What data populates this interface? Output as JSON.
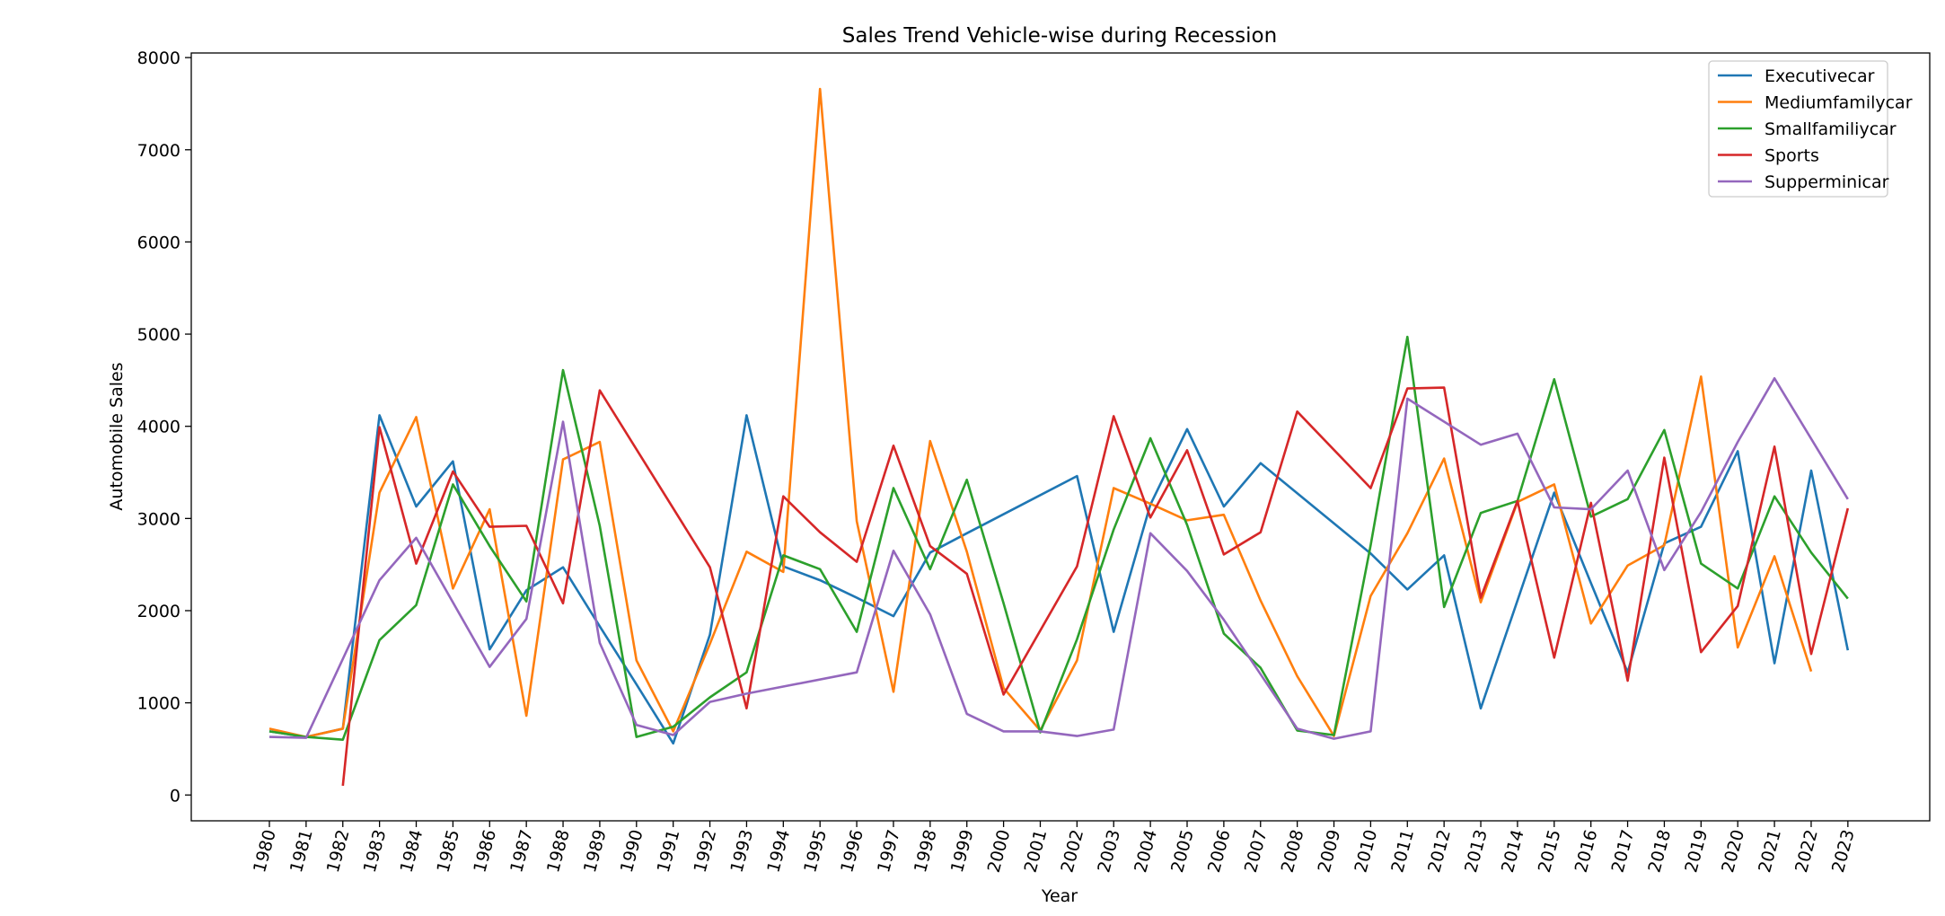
{
  "chart_data": {
    "type": "line",
    "title": "Sales Trend Vehicle-wise during Recession",
    "xlabel": "Year",
    "ylabel": "Automobile Sales",
    "ylim": [
      -280,
      8050
    ],
    "yticks": [
      0,
      1000,
      2000,
      3000,
      4000,
      5000,
      6000,
      7000,
      8000
    ],
    "xticks": [
      1980,
      1981,
      1982,
      1983,
      1984,
      1985,
      1986,
      1987,
      1988,
      1989,
      1990,
      1991,
      1992,
      1993,
      1994,
      1995,
      1996,
      1997,
      1998,
      1999,
      2000,
      2001,
      2002,
      2003,
      2004,
      2005,
      2006,
      2007,
      2008,
      2009,
      2010,
      2011,
      2012,
      2013,
      2014,
      2015,
      2016,
      2017,
      2018,
      2019,
      2020,
      2021,
      2022,
      2023
    ],
    "grid": false,
    "legend_position": "top-right",
    "series": [
      {
        "name": "Executivecar",
        "color": "#1f77b4",
        "points": [
          [
            1980,
            690
          ],
          [
            1981,
            630
          ],
          [
            1982,
            720
          ],
          [
            1983,
            4120
          ],
          [
            1984,
            3130
          ],
          [
            1985,
            3620
          ],
          [
            1986,
            1580
          ],
          [
            1987,
            2220
          ],
          [
            1988,
            2470
          ],
          [
            1989,
            1830
          ],
          [
            1990,
            1200
          ],
          [
            1991,
            560
          ],
          [
            1992,
            1740
          ],
          [
            1993,
            4120
          ],
          [
            1994,
            2480
          ],
          [
            1995,
            2330
          ],
          [
            1996,
            2140
          ],
          [
            1997,
            1940
          ],
          [
            1998,
            2630
          ],
          [
            1999,
            2840
          ],
          [
            2002,
            3460
          ],
          [
            2003,
            1770
          ],
          [
            2004,
            3150
          ],
          [
            2005,
            3970
          ],
          [
            2006,
            3130
          ],
          [
            2007,
            3600
          ],
          [
            2010,
            2620
          ],
          [
            2011,
            2230
          ],
          [
            2012,
            2600
          ],
          [
            2013,
            940
          ],
          [
            2015,
            3280
          ],
          [
            2016,
            2300
          ],
          [
            2017,
            1330
          ],
          [
            2018,
            2730
          ],
          [
            2019,
            2910
          ],
          [
            2020,
            3730
          ],
          [
            2021,
            1430
          ],
          [
            2022,
            3520
          ],
          [
            2023,
            1570
          ]
        ]
      },
      {
        "name": "Mediumfamilycar",
        "color": "#ff7f0e",
        "points": [
          [
            1980,
            720
          ],
          [
            1981,
            630
          ],
          [
            1982,
            720
          ],
          [
            1983,
            3280
          ],
          [
            1984,
            4100
          ],
          [
            1985,
            2240
          ],
          [
            1986,
            3100
          ],
          [
            1987,
            860
          ],
          [
            1988,
            3640
          ],
          [
            1989,
            3830
          ],
          [
            1990,
            1460
          ],
          [
            1991,
            690
          ],
          [
            1992,
            1640
          ],
          [
            1993,
            2640
          ],
          [
            1994,
            2420
          ],
          [
            1995,
            7660
          ],
          [
            1996,
            2970
          ],
          [
            1997,
            1120
          ],
          [
            1998,
            3840
          ],
          [
            1999,
            2640
          ],
          [
            2000,
            1160
          ],
          [
            2001,
            700
          ],
          [
            2002,
            1460
          ],
          [
            2003,
            3330
          ],
          [
            2004,
            3160
          ],
          [
            2005,
            2980
          ],
          [
            2006,
            3040
          ],
          [
            2007,
            2110
          ],
          [
            2008,
            1290
          ],
          [
            2009,
            640
          ],
          [
            2010,
            2160
          ],
          [
            2011,
            2840
          ],
          [
            2012,
            3650
          ],
          [
            2013,
            2090
          ],
          [
            2014,
            3180
          ],
          [
            2015,
            3370
          ],
          [
            2016,
            1860
          ],
          [
            2017,
            2490
          ],
          [
            2018,
            2710
          ],
          [
            2019,
            4540
          ],
          [
            2020,
            1600
          ],
          [
            2021,
            2590
          ],
          [
            2022,
            1340
          ]
        ]
      },
      {
        "name": "Smallfamiliycar",
        "color": "#2ca02c",
        "points": [
          [
            1980,
            690
          ],
          [
            1981,
            630
          ],
          [
            1982,
            600
          ],
          [
            1983,
            1680
          ],
          [
            1984,
            2060
          ],
          [
            1985,
            3370
          ],
          [
            1986,
            2700
          ],
          [
            1987,
            2100
          ],
          [
            1988,
            4610
          ],
          [
            1989,
            2920
          ],
          [
            1990,
            630
          ],
          [
            1991,
            740
          ],
          [
            1992,
            1060
          ],
          [
            1993,
            1330
          ],
          [
            1994,
            2600
          ],
          [
            1995,
            2450
          ],
          [
            1996,
            1770
          ],
          [
            1997,
            3330
          ],
          [
            1998,
            2450
          ],
          [
            1999,
            3420
          ],
          [
            2000,
            2080
          ],
          [
            2001,
            680
          ],
          [
            2002,
            1690
          ],
          [
            2003,
            2880
          ],
          [
            2004,
            3870
          ],
          [
            2005,
            2930
          ],
          [
            2006,
            1750
          ],
          [
            2007,
            1380
          ],
          [
            2008,
            700
          ],
          [
            2009,
            650
          ],
          [
            2010,
            2710
          ],
          [
            2011,
            4970
          ],
          [
            2012,
            2040
          ],
          [
            2013,
            3060
          ],
          [
            2014,
            3190
          ],
          [
            2015,
            4510
          ],
          [
            2016,
            3020
          ],
          [
            2017,
            3210
          ],
          [
            2018,
            3960
          ],
          [
            2019,
            2510
          ],
          [
            2020,
            2240
          ],
          [
            2021,
            3240
          ],
          [
            2022,
            2630
          ],
          [
            2023,
            2130
          ]
        ]
      },
      {
        "name": "Sports",
        "color": "#d62728",
        "points": [
          [
            1982,
            100
          ],
          [
            1983,
            3990
          ],
          [
            1984,
            2510
          ],
          [
            1985,
            3510
          ],
          [
            1986,
            2910
          ],
          [
            1987,
            2920
          ],
          [
            1988,
            2080
          ],
          [
            1989,
            4390
          ],
          [
            1992,
            2470
          ],
          [
            1993,
            940
          ],
          [
            1994,
            3240
          ],
          [
            1995,
            2850
          ],
          [
            1996,
            2530
          ],
          [
            1997,
            3790
          ],
          [
            1998,
            2700
          ],
          [
            1999,
            2400
          ],
          [
            2000,
            1090
          ],
          [
            2002,
            2480
          ],
          [
            2003,
            4110
          ],
          [
            2004,
            3010
          ],
          [
            2005,
            3740
          ],
          [
            2006,
            2610
          ],
          [
            2007,
            2850
          ],
          [
            2008,
            4160
          ],
          [
            2010,
            3330
          ],
          [
            2011,
            4410
          ],
          [
            2012,
            4420
          ],
          [
            2013,
            2140
          ],
          [
            2014,
            3190
          ],
          [
            2015,
            1490
          ],
          [
            2016,
            3170
          ],
          [
            2017,
            1240
          ],
          [
            2018,
            3660
          ],
          [
            2019,
            1550
          ],
          [
            2020,
            2050
          ],
          [
            2021,
            3780
          ],
          [
            2022,
            1530
          ],
          [
            2023,
            3110
          ]
        ]
      },
      {
        "name": "Supperminicar",
        "color": "#9467bd",
        "points": [
          [
            1980,
            630
          ],
          [
            1981,
            620
          ],
          [
            1983,
            2330
          ],
          [
            1984,
            2790
          ],
          [
            1986,
            1390
          ],
          [
            1987,
            1910
          ],
          [
            1988,
            4050
          ],
          [
            1989,
            1650
          ],
          [
            1990,
            760
          ],
          [
            1991,
            650
          ],
          [
            1992,
            1010
          ],
          [
            1993,
            1100
          ],
          [
            1996,
            1330
          ],
          [
            1997,
            2650
          ],
          [
            1998,
            1960
          ],
          [
            1999,
            880
          ],
          [
            2000,
            690
          ],
          [
            2001,
            690
          ],
          [
            2002,
            640
          ],
          [
            2003,
            710
          ],
          [
            2004,
            2840
          ],
          [
            2005,
            2430
          ],
          [
            2006,
            1900
          ],
          [
            2007,
            1310
          ],
          [
            2008,
            720
          ],
          [
            2009,
            610
          ],
          [
            2010,
            690
          ],
          [
            2011,
            4300
          ],
          [
            2013,
            3800
          ],
          [
            2014,
            3920
          ],
          [
            2015,
            3120
          ],
          [
            2016,
            3100
          ],
          [
            2017,
            3520
          ],
          [
            2018,
            2440
          ],
          [
            2019,
            3070
          ],
          [
            2020,
            3830
          ],
          [
            2021,
            4520
          ],
          [
            2023,
            3210
          ]
        ]
      }
    ]
  }
}
